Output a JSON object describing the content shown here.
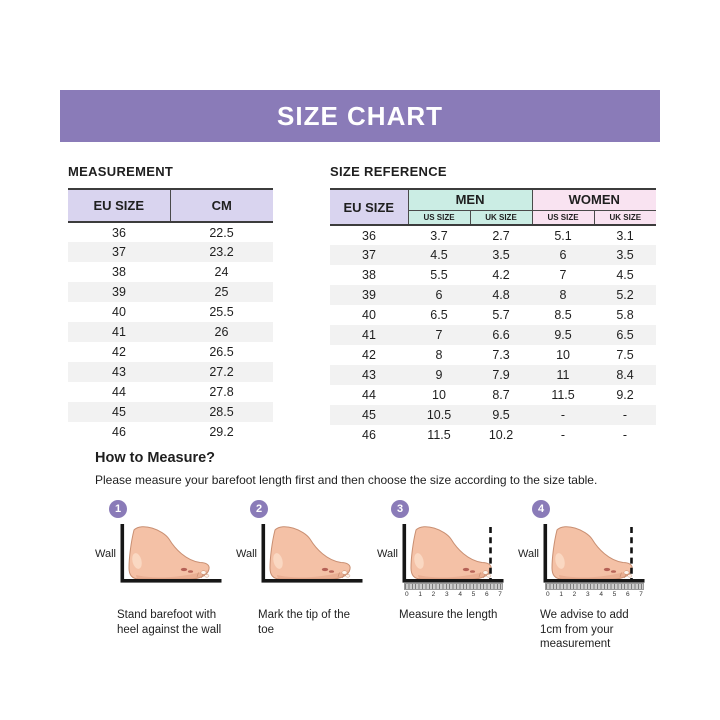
{
  "banner": {
    "title": "SIZE CHART"
  },
  "colors": {
    "banner_purple": "#8A7BB8",
    "header_lavender": "#D9D4EF",
    "men_mint": "#CBEDE4",
    "women_pink": "#F9E3F1",
    "row_stripe": "#F2F2F2"
  },
  "measurement": {
    "title": "MEASUREMENT",
    "columns": [
      "EU SIZE",
      "CM"
    ],
    "rows": [
      [
        "36",
        "22.5"
      ],
      [
        "37",
        "23.2"
      ],
      [
        "38",
        "24"
      ],
      [
        "39",
        "25"
      ],
      [
        "40",
        "25.5"
      ],
      [
        "41",
        "26"
      ],
      [
        "42",
        "26.5"
      ],
      [
        "43",
        "27.2"
      ],
      [
        "44",
        "27.8"
      ],
      [
        "45",
        "28.5"
      ],
      [
        "46",
        "29.2"
      ]
    ]
  },
  "size_reference": {
    "title": "SIZE REFERENCE",
    "eu_header": "EU SIZE",
    "groups": [
      {
        "label": "MEN",
        "sub": [
          "US SIZE",
          "UK SIZE"
        ]
      },
      {
        "label": "WOMEN",
        "sub": [
          "US SIZE",
          "UK SIZE"
        ]
      }
    ],
    "rows": [
      [
        "36",
        "3.7",
        "2.7",
        "5.1",
        "3.1"
      ],
      [
        "37",
        "4.5",
        "3.5",
        "6",
        "3.5"
      ],
      [
        "38",
        "5.5",
        "4.2",
        "7",
        "4.5"
      ],
      [
        "39",
        "6",
        "4.8",
        "8",
        "5.2"
      ],
      [
        "40",
        "6.5",
        "5.7",
        "8.5",
        "5.8"
      ],
      [
        "41",
        "7",
        "6.6",
        "9.5",
        "6.5"
      ],
      [
        "42",
        "8",
        "7.3",
        "10",
        "7.5"
      ],
      [
        "43",
        "9",
        "7.9",
        "11",
        "8.4"
      ],
      [
        "44",
        "10",
        "8.7",
        "11.5",
        "9.2"
      ],
      [
        "45",
        "10.5",
        "9.5",
        "-",
        "-"
      ],
      [
        "46",
        "11.5",
        "10.2",
        "-",
        "-"
      ]
    ]
  },
  "how_to_measure": {
    "heading": "How to Measure?",
    "description": "Please measure your barefoot length first and then choose the size according to the size table.",
    "wall_label": "Wall",
    "ruler_numbers": [
      "0",
      "1",
      "2",
      "3",
      "4",
      "5",
      "6",
      "7"
    ],
    "steps": [
      {
        "number": "1",
        "caption": "Stand barefoot with heel against the wall",
        "ruler": false,
        "dashed_line": false
      },
      {
        "number": "2",
        "caption": "Mark the tip of the toe",
        "ruler": false,
        "dashed_line": false
      },
      {
        "number": "3",
        "caption": "Measure the length",
        "ruler": true,
        "dashed_line": true
      },
      {
        "number": "4",
        "caption": "We advise to add 1cm from your measurement",
        "ruler": true,
        "dashed_line": true
      }
    ]
  }
}
